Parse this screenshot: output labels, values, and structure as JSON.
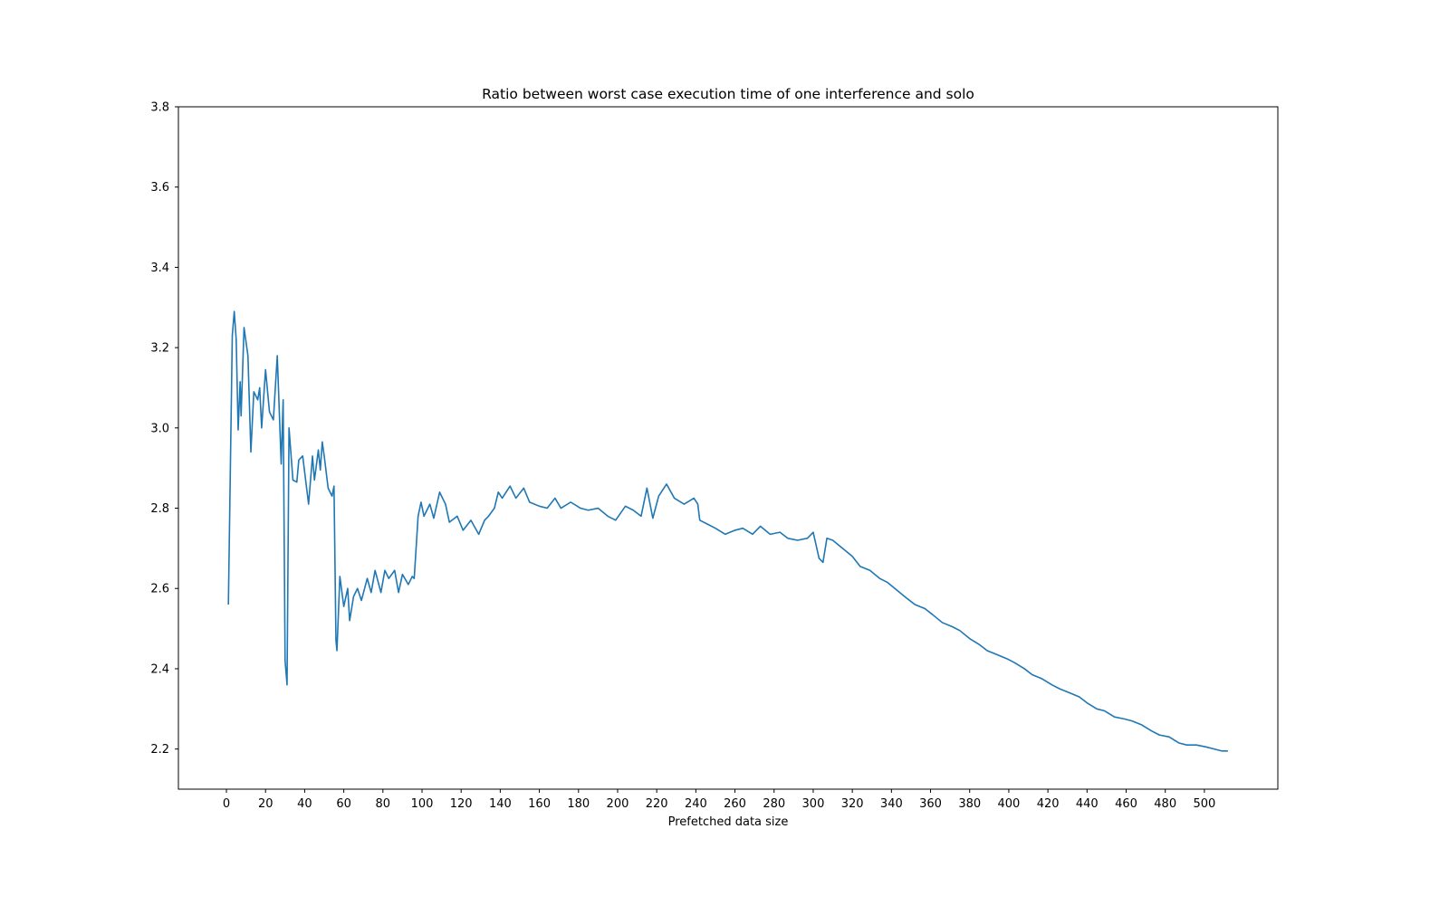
{
  "chart_data": {
    "type": "line",
    "title": "Ratio between worst case execution time of one interference and solo",
    "x_label": "Prefetched data size",
    "x": [
      1,
      3,
      4,
      5,
      6,
      7,
      7.5,
      9,
      11,
      12.5,
      14,
      16,
      17,
      18,
      20,
      22,
      24,
      26,
      28,
      29,
      30,
      31,
      32,
      34,
      36,
      37,
      39,
      40,
      42,
      44,
      45,
      47,
      48,
      49,
      50,
      52,
      54,
      55,
      56,
      56.5,
      58,
      60,
      62,
      63,
      65,
      67,
      69,
      72,
      74,
      76,
      79,
      81,
      83,
      86,
      88,
      90,
      93,
      95,
      96,
      98,
      99.5,
      101,
      104,
      106,
      109,
      112,
      114,
      118,
      121,
      125,
      129,
      132,
      134,
      137,
      139,
      141,
      145,
      148,
      152,
      155,
      160,
      164,
      168,
      171,
      176,
      181,
      185,
      190,
      195,
      199,
      204,
      208,
      212,
      215,
      218,
      221,
      225,
      229,
      234,
      239,
      241,
      242,
      246,
      250,
      255,
      260,
      264,
      269,
      273,
      278,
      283,
      287,
      292,
      297,
      300,
      303,
      305,
      307,
      310,
      315,
      320,
      324,
      329,
      334,
      338,
      343,
      348,
      352,
      357,
      361,
      366,
      371,
      375,
      380,
      385,
      389,
      394,
      399,
      403,
      408,
      412,
      417,
      422,
      426,
      431,
      436,
      440,
      445,
      449,
      454,
      459,
      463,
      468,
      473,
      477,
      482,
      487,
      491,
      496,
      501,
      505,
      509,
      512
    ],
    "series": [
      {
        "color": "#1f77b4",
        "values": [
          2.56,
          3.23,
          3.29,
          3.22,
          2.995,
          3.115,
          3.03,
          3.25,
          3.18,
          2.94,
          3.09,
          3.07,
          3.1,
          3.0,
          3.145,
          3.04,
          3.02,
          3.18,
          2.91,
          3.07,
          2.42,
          2.36,
          3.0,
          2.87,
          2.865,
          2.92,
          2.93,
          2.89,
          2.81,
          2.93,
          2.87,
          2.945,
          2.895,
          2.965,
          2.93,
          2.85,
          2.83,
          2.855,
          2.47,
          2.445,
          2.63,
          2.555,
          2.6,
          2.52,
          2.58,
          2.6,
          2.57,
          2.625,
          2.59,
          2.645,
          2.59,
          2.645,
          2.625,
          2.645,
          2.59,
          2.635,
          2.61,
          2.63,
          2.625,
          2.78,
          2.815,
          2.78,
          2.81,
          2.775,
          2.84,
          2.81,
          2.765,
          2.78,
          2.745,
          2.77,
          2.735,
          2.77,
          2.78,
          2.8,
          2.84,
          2.825,
          2.855,
          2.825,
          2.85,
          2.815,
          2.805,
          2.8,
          2.825,
          2.8,
          2.815,
          2.8,
          2.795,
          2.8,
          2.78,
          2.77,
          2.805,
          2.795,
          2.78,
          2.85,
          2.775,
          2.83,
          2.86,
          2.825,
          2.81,
          2.825,
          2.81,
          2.77,
          2.76,
          2.75,
          2.735,
          2.745,
          2.75,
          2.735,
          2.755,
          2.735,
          2.74,
          2.725,
          2.72,
          2.725,
          2.74,
          2.675,
          2.665,
          2.725,
          2.72,
          2.7,
          2.68,
          2.655,
          2.645,
          2.625,
          2.615,
          2.595,
          2.575,
          2.56,
          2.55,
          2.535,
          2.515,
          2.505,
          2.495,
          2.475,
          2.46,
          2.445,
          2.435,
          2.425,
          2.415,
          2.4,
          2.385,
          2.375,
          2.36,
          2.35,
          2.34,
          2.33,
          2.315,
          2.3,
          2.295,
          2.28,
          2.275,
          2.27,
          2.26,
          2.245,
          2.235,
          2.23,
          2.215,
          2.21,
          2.21,
          2.205,
          2.2,
          2.195,
          2.195
        ]
      }
    ],
    "xlim": [
      -24.55,
      537.55
    ],
    "xticks": [
      0,
      20,
      40,
      60,
      80,
      100,
      120,
      140,
      160,
      180,
      200,
      220,
      240,
      260,
      280,
      300,
      320,
      340,
      360,
      380,
      400,
      420,
      440,
      460,
      480,
      500
    ],
    "ylim": [
      2.1,
      3.8
    ],
    "yticks": [
      2.2,
      2.4,
      2.6,
      2.8,
      {
        "value": 3,
        "label": "3.0"
      },
      3.2,
      3.4,
      3.6,
      3.8
    ]
  }
}
